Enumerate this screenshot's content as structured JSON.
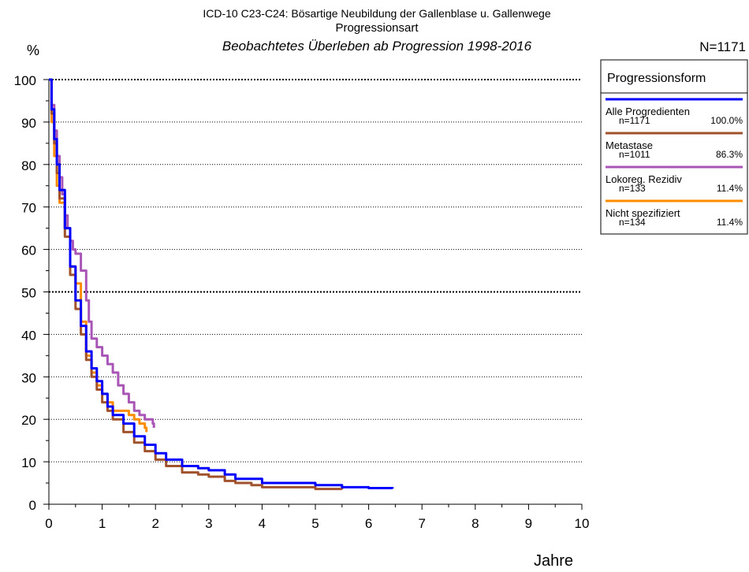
{
  "chart_data": {
    "type": "line",
    "title": "ICD-10 C23-C24: Bösartige Neubildung der Gallenblase u. Gallenwege",
    "subtitle": "Progressionsart",
    "subtitle2": "Beobachtetes Überleben ab Progression 1998-2016",
    "n_total": "N=1171",
    "ylabel": "%",
    "xlabel": "Jahre",
    "xlim": [
      0,
      10
    ],
    "ylim": [
      0,
      100
    ],
    "x_ticks": [
      "0",
      "1",
      "2",
      "3",
      "4",
      "5",
      "6",
      "7",
      "8",
      "9",
      "10"
    ],
    "y_ticks": [
      "0",
      "10",
      "20",
      "30",
      "40",
      "50",
      "60",
      "70",
      "80",
      "90",
      "100"
    ],
    "grid": true,
    "legend_title": "Progressionsform",
    "legend_position": "top-right",
    "series": [
      {
        "name": "Alle Progredienten",
        "n": "n=1171",
        "pct": "100.0%",
        "color": "#0000ff",
        "points": [
          [
            0,
            100
          ],
          [
            0.05,
            93
          ],
          [
            0.1,
            86
          ],
          [
            0.15,
            80
          ],
          [
            0.2,
            74
          ],
          [
            0.3,
            65
          ],
          [
            0.4,
            56
          ],
          [
            0.5,
            48
          ],
          [
            0.6,
            42
          ],
          [
            0.7,
            36
          ],
          [
            0.8,
            32
          ],
          [
            0.9,
            29
          ],
          [
            1.0,
            26
          ],
          [
            1.1,
            23
          ],
          [
            1.2,
            21
          ],
          [
            1.4,
            19
          ],
          [
            1.6,
            16
          ],
          [
            1.8,
            14
          ],
          [
            2.0,
            12
          ],
          [
            2.2,
            10.5
          ],
          [
            2.5,
            9
          ],
          [
            2.8,
            8.5
          ],
          [
            3.0,
            8
          ],
          [
            3.3,
            7
          ],
          [
            3.5,
            6
          ],
          [
            4.0,
            5
          ],
          [
            4.5,
            5
          ],
          [
            5.0,
            4.5
          ],
          [
            5.5,
            4
          ],
          [
            6.0,
            3.8
          ],
          [
            6.45,
            3.7
          ]
        ]
      },
      {
        "name": "Metastase",
        "n": "n=1011",
        "pct": "86.3%",
        "color": "#a0522d",
        "points": [
          [
            0,
            100
          ],
          [
            0.05,
            92
          ],
          [
            0.1,
            85
          ],
          [
            0.15,
            78
          ],
          [
            0.2,
            72
          ],
          [
            0.3,
            63
          ],
          [
            0.4,
            54
          ],
          [
            0.5,
            46
          ],
          [
            0.6,
            40
          ],
          [
            0.7,
            34
          ],
          [
            0.8,
            30
          ],
          [
            0.9,
            27
          ],
          [
            1.0,
            24
          ],
          [
            1.1,
            22
          ],
          [
            1.2,
            20
          ],
          [
            1.4,
            17
          ],
          [
            1.6,
            14.5
          ],
          [
            1.8,
            12.5
          ],
          [
            2.0,
            10.5
          ],
          [
            2.2,
            9
          ],
          [
            2.5,
            7.5
          ],
          [
            2.8,
            7
          ],
          [
            3.0,
            6.5
          ],
          [
            3.3,
            5.5
          ],
          [
            3.5,
            5
          ],
          [
            3.8,
            4.5
          ],
          [
            4.0,
            4
          ],
          [
            4.5,
            4
          ],
          [
            5.0,
            3.6
          ],
          [
            5.5,
            3.5
          ]
        ]
      },
      {
        "name": "Lokoreg. Rezidiv",
        "n": "n=133",
        "pct": "11.4%",
        "color": "#a855b5",
        "points": [
          [
            0,
            100
          ],
          [
            0.05,
            94
          ],
          [
            0.1,
            88
          ],
          [
            0.15,
            82
          ],
          [
            0.2,
            77
          ],
          [
            0.25,
            73
          ],
          [
            0.3,
            68
          ],
          [
            0.35,
            65
          ],
          [
            0.4,
            62
          ],
          [
            0.45,
            60
          ],
          [
            0.5,
            59
          ],
          [
            0.6,
            55
          ],
          [
            0.7,
            48
          ],
          [
            0.75,
            43
          ],
          [
            0.8,
            39
          ],
          [
            0.9,
            37
          ],
          [
            1.0,
            35
          ],
          [
            1.1,
            33
          ],
          [
            1.2,
            31
          ],
          [
            1.3,
            28
          ],
          [
            1.4,
            26
          ],
          [
            1.5,
            24
          ],
          [
            1.6,
            22
          ],
          [
            1.7,
            21
          ],
          [
            1.8,
            20
          ],
          [
            1.95,
            19
          ],
          [
            1.97,
            18
          ]
        ]
      },
      {
        "name": "Nicht spezifiziert",
        "n": "n=134",
        "pct": "11.4%",
        "color": "#ff8c00",
        "points": [
          [
            0,
            100
          ],
          [
            0.05,
            90
          ],
          [
            0.1,
            82
          ],
          [
            0.15,
            75
          ],
          [
            0.2,
            71
          ],
          [
            0.3,
            65
          ],
          [
            0.4,
            56
          ],
          [
            0.5,
            52
          ],
          [
            0.6,
            43
          ],
          [
            0.7,
            35
          ],
          [
            0.8,
            31
          ],
          [
            0.9,
            28
          ],
          [
            1.0,
            26
          ],
          [
            1.1,
            24
          ],
          [
            1.2,
            22
          ],
          [
            1.4,
            22
          ],
          [
            1.5,
            21
          ],
          [
            1.6,
            20
          ],
          [
            1.7,
            19
          ],
          [
            1.8,
            18
          ],
          [
            1.83,
            17
          ]
        ]
      }
    ]
  }
}
